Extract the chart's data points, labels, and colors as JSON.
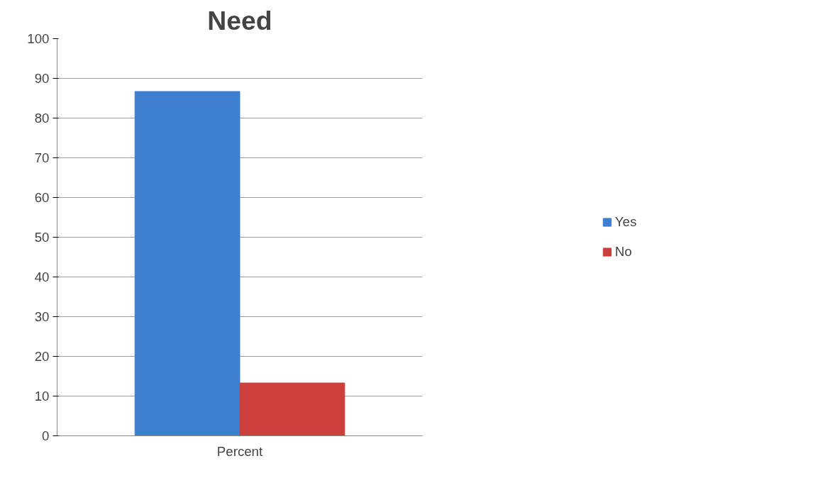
{
  "chart_data": {
    "type": "bar",
    "title": "Need",
    "categories": [
      "Percent"
    ],
    "series": [
      {
        "name": "Yes",
        "color": "#3f7fd0",
        "values": [
          86.7
        ]
      },
      {
        "name": "No",
        "color": "#cc3f3c",
        "values": [
          13.3
        ]
      }
    ],
    "ylim": [
      0,
      100
    ],
    "yticks": [
      0,
      10,
      20,
      30,
      40,
      50,
      60,
      70,
      80,
      90,
      100
    ],
    "grid": "y",
    "legend": "right"
  }
}
